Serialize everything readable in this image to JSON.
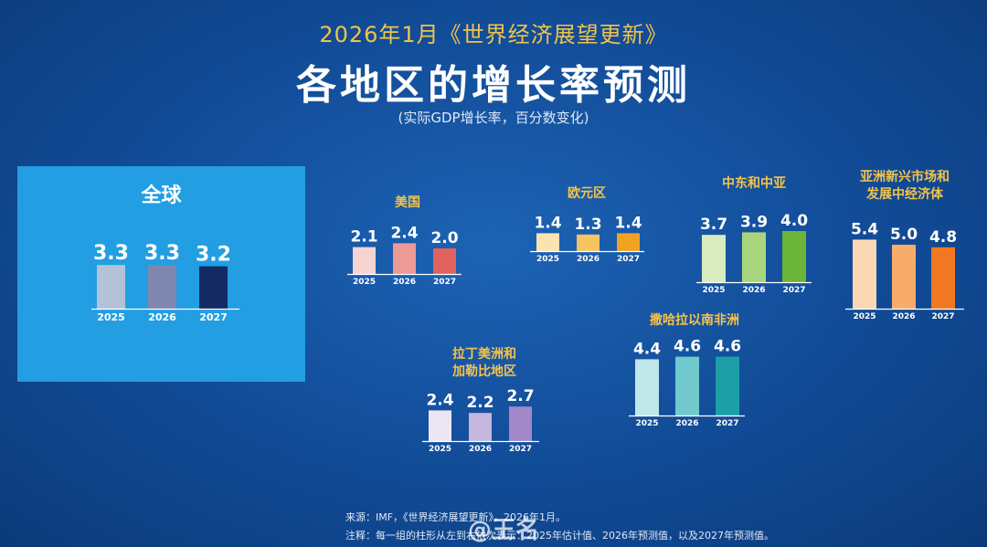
{
  "header": {
    "subtitle": "2026年1月《世界经济展望更新》",
    "title": "各地区的增长率预测",
    "note": "(实际GDP增长率，百分数变化)"
  },
  "colors": {
    "background": "#134f9c",
    "global_panel": "#239ee3",
    "region_label": "#f5c34b"
  },
  "chart_data": [
    {
      "type": "bar",
      "name": "全球",
      "categories": [
        "2025",
        "2026",
        "2027"
      ],
      "values": [
        3.3,
        3.3,
        3.2
      ],
      "colors": [
        "#b4c2d8",
        "#7f87ae",
        "#142a63"
      ]
    },
    {
      "type": "bar",
      "name": "美国",
      "categories": [
        "2025",
        "2026",
        "2027"
      ],
      "values": [
        2.1,
        2.4,
        2.0
      ],
      "colors": [
        "#f7d4d2",
        "#ec9a95",
        "#e0635d"
      ]
    },
    {
      "type": "bar",
      "name": "欧元区",
      "categories": [
        "2025",
        "2026",
        "2027"
      ],
      "values": [
        1.4,
        1.3,
        1.4
      ],
      "colors": [
        "#fae3b0",
        "#f6c561",
        "#f0a323"
      ]
    },
    {
      "type": "bar",
      "name": "中东和中亚",
      "categories": [
        "2025",
        "2026",
        "2027"
      ],
      "values": [
        3.7,
        3.9,
        4.0
      ],
      "colors": [
        "#d8ecc0",
        "#a8d47c",
        "#6ab537"
      ]
    },
    {
      "type": "bar",
      "name": "亚洲新兴市场和发展中经济体",
      "categories": [
        "2025",
        "2026",
        "2027"
      ],
      "values": [
        5.4,
        5.0,
        4.8
      ],
      "colors": [
        "#fbd8b5",
        "#f8ac6b",
        "#f07822"
      ]
    },
    {
      "type": "bar",
      "name": "拉丁美洲和加勒比地区",
      "categories": [
        "2025",
        "2026",
        "2027"
      ],
      "values": [
        2.4,
        2.2,
        2.7
      ],
      "colors": [
        "#ece6f4",
        "#c5b6de",
        "#a287c9"
      ]
    },
    {
      "type": "bar",
      "name": "撒哈拉以南非洲",
      "categories": [
        "2025",
        "2026",
        "2027"
      ],
      "values": [
        4.4,
        4.6,
        4.6
      ],
      "colors": [
        "#bfe7e9",
        "#6fc9cd",
        "#1d9fa6"
      ]
    }
  ],
  "region_labels": {
    "global": "全球",
    "us": "美国",
    "euro": "欧元区",
    "mideast": "中东和中亚",
    "asia_line1": "亚洲新兴市场和",
    "asia_line2": "发展中经济体",
    "latam_line1": "拉丁美洲和",
    "latam_line2": "加勒比地区",
    "ssa": "撒哈拉以南非洲"
  },
  "footer": {
    "source": "来源：IMF，《世界经济展望更新》，2026年1月。",
    "notes": "注释：每一组的柱形从左到右依次表示：2025年估计值、2026年预测值，以及2027年预测值。"
  },
  "watermark": "@王名"
}
